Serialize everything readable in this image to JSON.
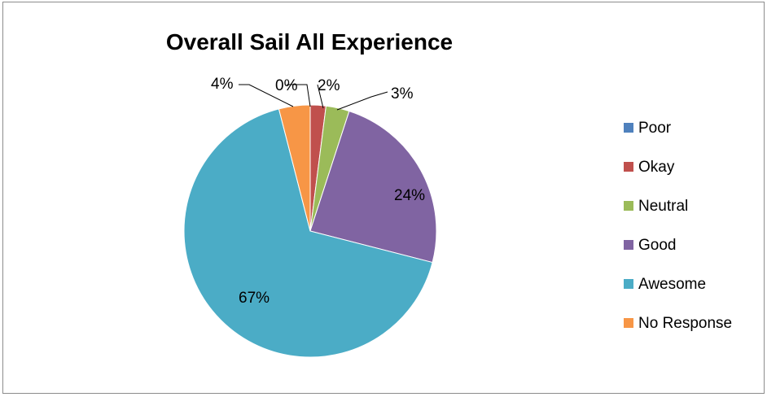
{
  "chart_data": {
    "type": "pie",
    "title": "Overall Sail All Experience",
    "categories": [
      "Poor",
      "Okay",
      "Neutral",
      "Good",
      "Awesome",
      "No Response"
    ],
    "values": [
      0,
      2,
      3,
      24,
      67,
      4
    ],
    "labels": [
      "0%",
      "2%",
      "3%",
      "24%",
      "67%",
      "4%"
    ],
    "colors": [
      "#4F81BD",
      "#C0504D",
      "#9BBB59",
      "#8064A2",
      "#4BACC6",
      "#F79646"
    ],
    "legend_position": "right"
  }
}
